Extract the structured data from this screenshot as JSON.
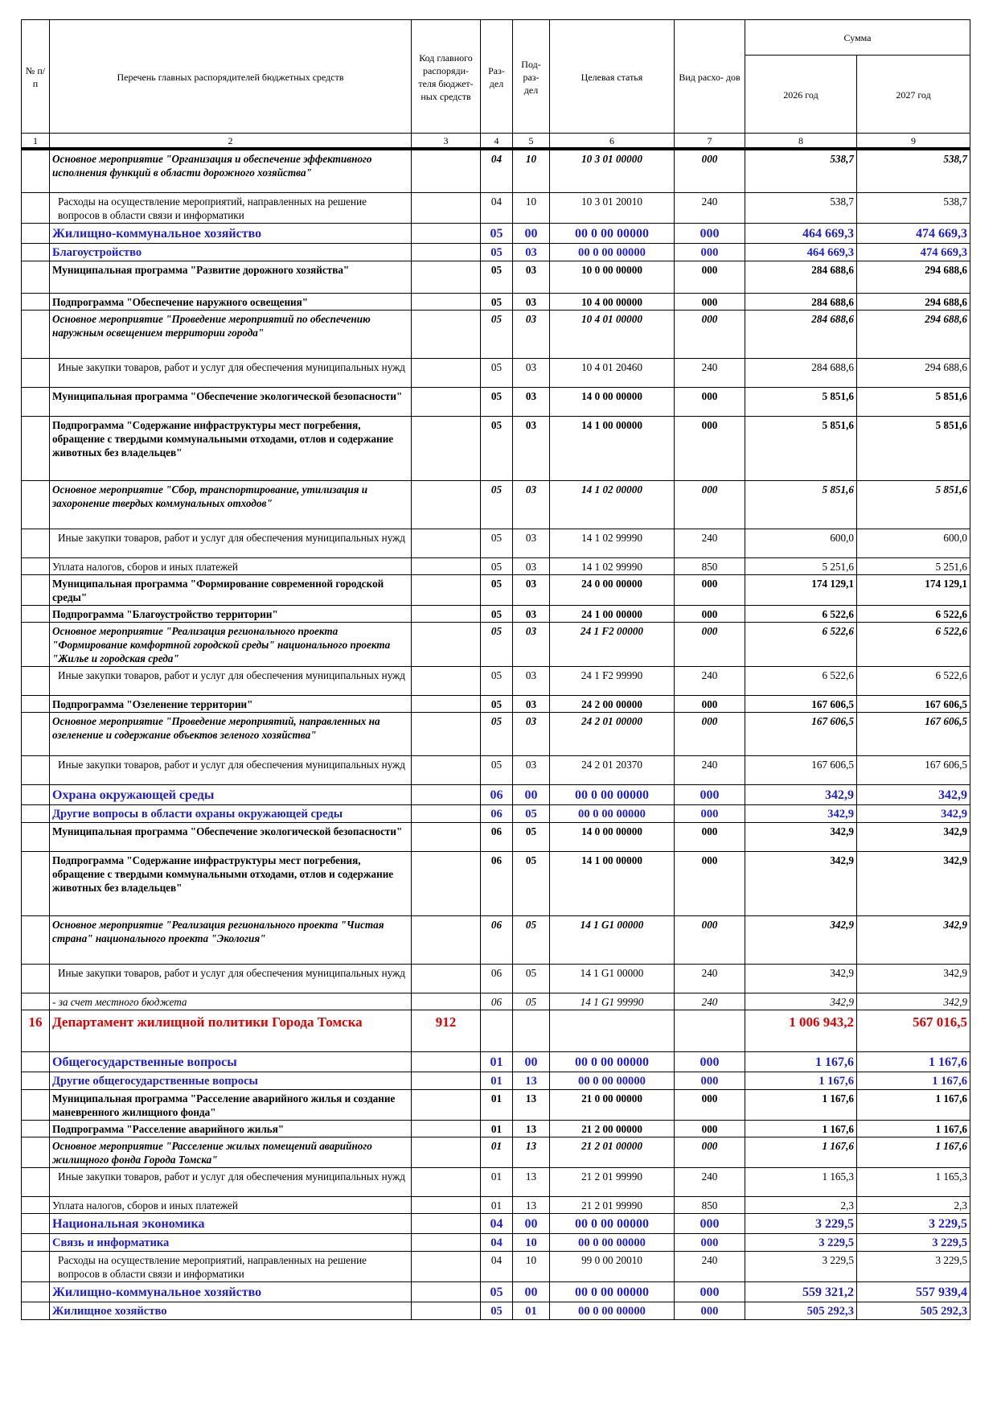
{
  "header": {
    "no_label": "№ п/п",
    "name_label": "Перечень главных распорядителей бюджетных средств",
    "code_label": "Код главного распоряди- теля бюджет- ных средств",
    "section_label": "Раз- дел",
    "subsection_label": "Под- раз- дел",
    "target_label": "Целевая статья",
    "exp_type_label": "Вид расхо- дов",
    "sum_label": "Сумма",
    "year1_label": "2026 год",
    "year2_label": "2027 год",
    "col_numbers": [
      "1",
      "2",
      "3",
      "4",
      "5",
      "6",
      "7",
      "8",
      "9"
    ]
  },
  "rows": [
    {
      "style": "bi",
      "h": 54,
      "name": "Основное мероприятие \"Организация и обеспечение эффективного исполнения функций в области дорожного хозяйства\"",
      "sec": "04",
      "sub": "10",
      "target": "10 3 01 00000",
      "vr": "000",
      "y1": "538,7",
      "y2": "538,7"
    },
    {
      "style": "n",
      "h": 36,
      "name": "Расходы на осуществление мероприятий, направленных на решение вопросов в области связи и информатики",
      "sec": "04",
      "sub": "10",
      "target": "10 3 01 20010",
      "vr": "240",
      "y1": "538,7",
      "y2": "538,7"
    },
    {
      "style": "s",
      "h": 22,
      "name": "Жилищно-коммунальное хозяйство",
      "sec": "05",
      "sub": "00",
      "target": "00 0 00 00000",
      "vr": "000",
      "y1": "464 669,3",
      "y2": "474 669,3"
    },
    {
      "style": "s2",
      "h": 18,
      "name": "Благоустройство",
      "sec": "05",
      "sub": "03",
      "target": "00 0 00 00000",
      "vr": "000",
      "y1": "464 669,3",
      "y2": "474 669,3"
    },
    {
      "style": "b",
      "h": 40,
      "name": "Муниципальная программа \"Развитие дорожного хозяйства\"",
      "sec": "05",
      "sub": "03",
      "target": "10 0 00 00000",
      "vr": "000",
      "y1": "284 688,6",
      "y2": "294 688,6"
    },
    {
      "style": "b",
      "h": 18,
      "name": "Подпрограмма \"Обеспечение наружного освещения\"",
      "sec": "05",
      "sub": "03",
      "target": "10 4 00 00000",
      "vr": "000",
      "y1": "284 688,6",
      "y2": "294 688,6"
    },
    {
      "style": "bi",
      "h": 60,
      "name": "Основное мероприятие \"Проведение мероприятий по обеспечению наружным освещением территории города\"",
      "sec": "05",
      "sub": "03",
      "target": "10 4 01 00000",
      "vr": "000",
      "y1": "284 688,6",
      "y2": "294 688,6"
    },
    {
      "style": "n",
      "h": 36,
      "name": "Иные закупки товаров, работ и услуг для обеспечения муниципальных нужд",
      "sec": "05",
      "sub": "03",
      "target": "10 4 01 20460",
      "vr": "240",
      "y1": "284 688,6",
      "y2": "294 688,6"
    },
    {
      "style": "b",
      "h": 36,
      "name": "Муниципальная программа \"Обеспечение экологической безопасности\"",
      "sec": "05",
      "sub": "03",
      "target": "14 0 00 00000",
      "vr": "000",
      "y1": "5 851,6",
      "y2": "5 851,6"
    },
    {
      "style": "b",
      "h": 80,
      "name": "Подпрограмма \"Содержание инфраструктуры мест погребения, обращение с твердыми коммунальными отходами, отлов и содержание животных без владельцев\"",
      "sec": "05",
      "sub": "03",
      "target": "14 1 00 00000",
      "vr": "000",
      "y1": "5 851,6",
      "y2": "5 851,6"
    },
    {
      "style": "bi",
      "h": 60,
      "name": "Основное мероприятие \"Сбор, транспортирование, утилизация и захоронение твердых коммунальных отходов\"",
      "sec": "05",
      "sub": "03",
      "target": "14 1 02 00000",
      "vr": "000",
      "y1": "5 851,6",
      "y2": "5 851,6"
    },
    {
      "style": "n",
      "h": 36,
      "name": "Иные закупки товаров, работ и услуг для обеспечения муниципальных нужд",
      "sec": "05",
      "sub": "03",
      "target": "14 1 02 99990",
      "vr": "240",
      "y1": "600,0",
      "y2": "600,0"
    },
    {
      "style": "n2",
      "h": 18,
      "name": "Уплата налогов, сборов и иных платежей",
      "sec": "05",
      "sub": "03",
      "target": "14 1 02 99990",
      "vr": "850",
      "y1": "5 251,6",
      "y2": "5 251,6"
    },
    {
      "style": "b",
      "h": 36,
      "name": "Муниципальная программа \"Формирование современной городской среды\"",
      "sec": "05",
      "sub": "03",
      "target": "24 0 00 00000",
      "vr": "000",
      "y1": "174 129,1",
      "y2": "174 129,1"
    },
    {
      "style": "b",
      "h": 18,
      "name": "Подпрограмма \"Благоустройство территории\"",
      "sec": "05",
      "sub": "03",
      "target": "24 1 00 00000",
      "vr": "000",
      "y1": "6 522,6",
      "y2": "6 522,6"
    },
    {
      "style": "bi",
      "h": 54,
      "name": "Основное мероприятие \"Реализация регионального проекта \"Формирование комфортной городской среды\" национального проекта \"Жилье и городская среда\"",
      "sec": "05",
      "sub": "03",
      "target": "24 1 F2 00000",
      "vr": "000",
      "y1": "6 522,6",
      "y2": "6 522,6"
    },
    {
      "style": "n",
      "h": 36,
      "name": "Иные закупки товаров, работ и услуг для обеспечения муниципальных нужд",
      "sec": "05",
      "sub": "03",
      "target": "24 1 F2 99990",
      "vr": "240",
      "y1": "6 522,6",
      "y2": "6 522,6"
    },
    {
      "style": "b",
      "h": 18,
      "name": "Подпрограмма \"Озеленение территории\"",
      "sec": "05",
      "sub": "03",
      "target": "24 2 00 00000",
      "vr": "000",
      "y1": "167 606,5",
      "y2": "167 606,5"
    },
    {
      "style": "bi",
      "h": 54,
      "name": "Основное мероприятие \"Проведение мероприятий, направленных на озеленение и содержание объектов зеленого хозяйства\"",
      "sec": "05",
      "sub": "03",
      "target": "24 2 01 00000",
      "vr": "000",
      "y1": "167 606,5",
      "y2": "167 606,5"
    },
    {
      "style": "n",
      "h": 36,
      "name": "Иные закупки товаров, работ и услуг для обеспечения муниципальных нужд",
      "sec": "05",
      "sub": "03",
      "target": "24 2 01 20370",
      "vr": "240",
      "y1": "167 606,5",
      "y2": "167 606,5"
    },
    {
      "style": "s",
      "h": 22,
      "name": "Охрана окружающей среды",
      "sec": "06",
      "sub": "00",
      "target": "00 0 00 00000",
      "vr": "000",
      "y1": "342,9",
      "y2": "342,9"
    },
    {
      "style": "s2",
      "h": 18,
      "name": "Другие вопросы в области охраны окружающей среды",
      "sec": "06",
      "sub": "05",
      "target": "00 0 00 00000",
      "vr": "000",
      "y1": "342,9",
      "y2": "342,9"
    },
    {
      "style": "b",
      "h": 36,
      "name": "Муниципальная программа \"Обеспечение экологической безопасности\"",
      "sec": "06",
      "sub": "05",
      "target": "14 0 00 00000",
      "vr": "000",
      "y1": "342,9",
      "y2": "342,9"
    },
    {
      "style": "b",
      "h": 80,
      "name": "Подпрограмма \"Содержание инфраструктуры мест погребения, обращение с твердыми коммунальными отходами, отлов и содержание животных без владельцев\"",
      "sec": "06",
      "sub": "05",
      "target": "14 1 00 00000",
      "vr": "000",
      "y1": "342,9",
      "y2": "342,9"
    },
    {
      "style": "bi",
      "h": 60,
      "name": "Основное мероприятие \"Реализация регионального проекта \"Чистая страна\" национального проекта \"Экология\"",
      "sec": "06",
      "sub": "05",
      "target": "14 1 G1 00000",
      "vr": "000",
      "y1": "342,9",
      "y2": "342,9"
    },
    {
      "style": "n",
      "h": 36,
      "name": "Иные закупки товаров, работ и услуг для обеспечения муниципальных нужд",
      "sec": "06",
      "sub": "05",
      "target": "14 1 G1 00000",
      "vr": "240",
      "y1": "342,9",
      "y2": "342,9"
    },
    {
      "style": "i",
      "h": 18,
      "name": "- за счет местного бюджета",
      "sec": "06",
      "sub": "05",
      "target": "14 1 G1 99990",
      "vr": "240",
      "y1": "342,9",
      "y2": "342,9"
    },
    {
      "style": "d",
      "h": 52,
      "no": "16",
      "name": "Департамент жилищной политики Города Томска",
      "code": "912",
      "sec": "",
      "sub": "",
      "target": "",
      "vr": "",
      "y1": "1 006 943,2",
      "y2": "567 016,5"
    },
    {
      "style": "s",
      "h": 22,
      "name": "Общегосударственные вопросы",
      "sec": "01",
      "sub": "00",
      "target": "00 0 00 00000",
      "vr": "000",
      "y1": "1 167,6",
      "y2": "1 167,6"
    },
    {
      "style": "s2",
      "h": 18,
      "name": "Другие общегосударственные вопросы",
      "sec": "01",
      "sub": "13",
      "target": "00 0 00 00000",
      "vr": "000",
      "y1": "1 167,6",
      "y2": "1 167,6"
    },
    {
      "style": "b",
      "h": 36,
      "name": "Муниципальная программа \"Расселение аварийного жилья и создание маневренного жилищного фонда\"",
      "sec": "01",
      "sub": "13",
      "target": "21 0 00 00000",
      "vr": "000",
      "y1": "1 167,6",
      "y2": "1 167,6"
    },
    {
      "style": "b",
      "h": 18,
      "name": "Подпрограмма \"Расселение аварийного жилья\"",
      "sec": "01",
      "sub": "13",
      "target": "21 2 00 00000",
      "vr": "000",
      "y1": "1 167,6",
      "y2": "1 167,6"
    },
    {
      "style": "bi",
      "h": 36,
      "name": "Основное мероприятие \"Расселение жилых помещений аварийного жилищного фонда Города Томска\"",
      "sec": "01",
      "sub": "13",
      "target": "21 2 01 00000",
      "vr": "000",
      "y1": "1 167,6",
      "y2": "1 167,6"
    },
    {
      "style": "n",
      "h": 36,
      "name": "Иные закупки товаров, работ и услуг для обеспечения муниципальных нужд",
      "sec": "01",
      "sub": "13",
      "target": "21 2 01 99990",
      "vr": "240",
      "y1": "1 165,3",
      "y2": "1 165,3"
    },
    {
      "style": "n2",
      "h": 18,
      "name": "Уплата налогов, сборов и иных платежей",
      "sec": "01",
      "sub": "13",
      "target": "21 2 01 99990",
      "vr": "850",
      "y1": "2,3",
      "y2": "2,3"
    },
    {
      "style": "s",
      "h": 22,
      "name": "Национальная экономика",
      "sec": "04",
      "sub": "00",
      "target": "00 0 00 00000",
      "vr": "000",
      "y1": "3 229,5",
      "y2": "3 229,5"
    },
    {
      "style": "s2",
      "h": 18,
      "name": "Связь и информатика",
      "sec": "04",
      "sub": "10",
      "target": "00 0 00 00000",
      "vr": "000",
      "y1": "3 229,5",
      "y2": "3 229,5"
    },
    {
      "style": "n",
      "h": 36,
      "name": "Расходы на осуществление мероприятий, направленных на решение вопросов в области связи и информатики",
      "sec": "04",
      "sub": "10",
      "target": "99 0 00 20010",
      "vr": "240",
      "y1": "3 229,5",
      "y2": "3 229,5"
    },
    {
      "style": "s",
      "h": 22,
      "name": "Жилищно-коммунальное хозяйство",
      "sec": "05",
      "sub": "00",
      "target": "00 0 00 00000",
      "vr": "000",
      "y1": "559 321,2",
      "y2": "557 939,4"
    },
    {
      "style": "s2",
      "h": 18,
      "name": "Жилищное хозяйство",
      "sec": "05",
      "sub": "01",
      "target": "00 0 00 00000",
      "vr": "000",
      "y1": "505 292,3",
      "y2": "505 292,3"
    }
  ]
}
